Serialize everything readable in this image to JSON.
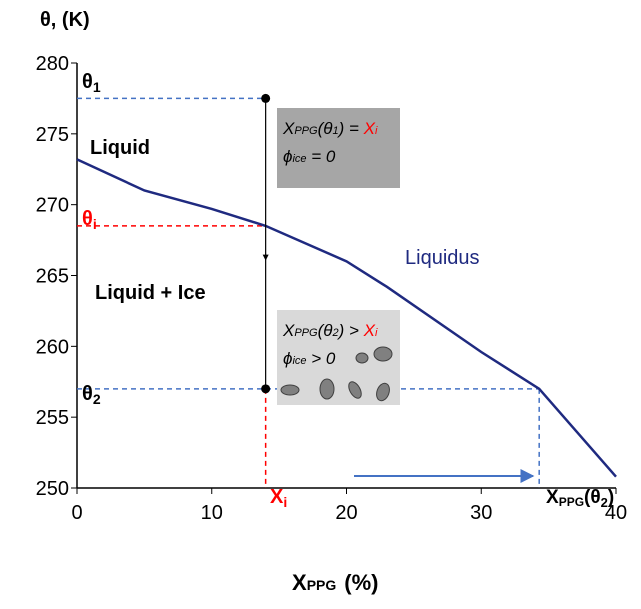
{
  "chart_data": {
    "type": "line",
    "y_axis_title": "θ, (K)",
    "x_axis_title": [
      "X",
      "PPG",
      "(%)"
    ],
    "x": [
      0,
      5,
      10,
      14,
      20,
      23,
      30,
      34.3,
      40
    ],
    "series": [
      {
        "name": "Liquidus",
        "color": "#1f2a80",
        "values": [
          273.2,
          271.0,
          269.7,
          268.5,
          266.0,
          264.2,
          259.6,
          257,
          250.8
        ]
      }
    ],
    "xlim": [
      0,
      40
    ],
    "ylim": [
      250,
      280
    ],
    "xticks": [
      0,
      10,
      20,
      30,
      40
    ],
    "yticks": [
      250,
      255,
      260,
      265,
      270,
      275,
      280
    ],
    "levels": [
      {
        "symbol": "θ",
        "sub": "1",
        "y": 277.5,
        "x_end": 14,
        "color": "#4472c4"
      },
      {
        "symbol": "θ",
        "sub": "i",
        "y": 268.5,
        "x_end": 14,
        "color": "#ff0000"
      },
      {
        "symbol": "θ",
        "sub": "2",
        "y": 257,
        "x_end": 34.3,
        "color": "#4472c4"
      }
    ],
    "drops": [
      {
        "x": 14,
        "label": [
          "X",
          "i"
        ],
        "color": "#ff0000"
      },
      {
        "x": 34.3,
        "label": [
          "X",
          "PPG",
          "(θ",
          "2",
          ")"
        ],
        "color": "#4472c4"
      }
    ],
    "regions": [
      "Liquid",
      "Liquid + Ice"
    ],
    "boxes": [
      {
        "line1": [
          "X",
          "PPG",
          "(θ",
          "1",
          ") = ",
          "X",
          "i"
        ],
        "line2": [
          "ϕ",
          "ice",
          " = 0"
        ]
      },
      {
        "line1": [
          "X",
          "PPG",
          "(θ",
          "2",
          ") > ",
          "X",
          "i"
        ],
        "line2": [
          "ϕ",
          "ice",
          " > 0"
        ]
      }
    ]
  }
}
